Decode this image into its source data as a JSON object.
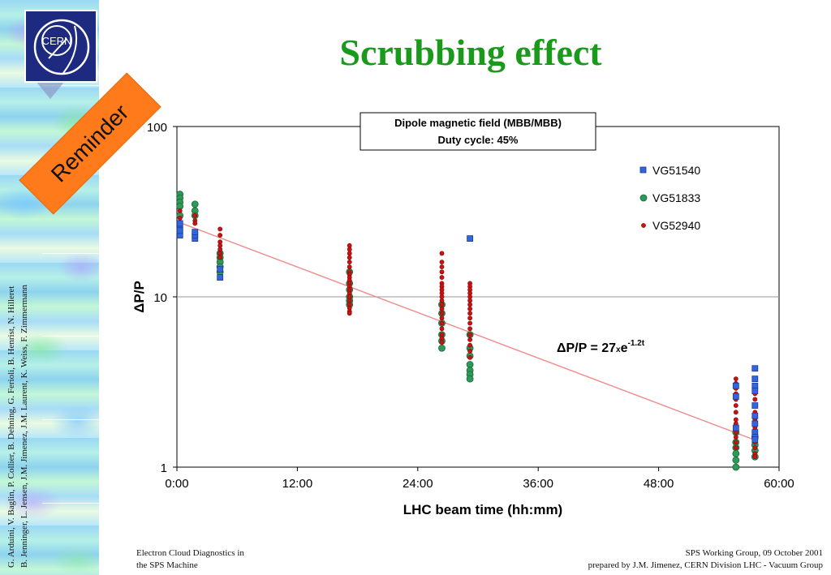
{
  "slide": {
    "title": "Scrubbing effect",
    "reminder": "Reminder",
    "logo_text": "CERN",
    "authors_line1": "G. Arduini, V. Baglin, P. Collier, B. Dehning, G. Ferioli, B. Henrist, N. Hilleret",
    "authors_line2": "B. Jenninger, L. Jensen, J.M. Jimenez, J.M. Laurent, K. Weiss, F. Zimmermann",
    "footer_left_1": "Electron Cloud Diagnostics in",
    "footer_left_2": "the SPS Machine",
    "footer_right_1": "SPS Working Group, 09 October 2001",
    "footer_right_2": "prepared by J.M. Jimenez, CERN Division LHC - Vacuum Group"
  },
  "colors": {
    "title": "#1a9a1a",
    "accent_orange": "#ff7a1a",
    "logo_bg": "#1e2a80"
  },
  "chart_data": {
    "type": "scatter",
    "y_scale": "log",
    "xlabel": "LHC beam time (hh:mm)",
    "ylabel": "ΔP/P",
    "xlim": [
      0,
      60
    ],
    "ylim": [
      1,
      100
    ],
    "x_ticks": [
      {
        "value": 0,
        "label": "0:00"
      },
      {
        "value": 12,
        "label": "12:00"
      },
      {
        "value": 24,
        "label": "24:00"
      },
      {
        "value": 36,
        "label": "36:00"
      },
      {
        "value": 48,
        "label": "48:00"
      },
      {
        "value": 60,
        "label": "60:00"
      }
    ],
    "y_ticks": [
      {
        "value": 1,
        "label": "1"
      },
      {
        "value": 10,
        "label": "10"
      },
      {
        "value": 100,
        "label": "100"
      }
    ],
    "info_box": [
      "Dipole magnetic field (MBB/MBB)",
      "Duty cycle: 45%"
    ],
    "fit": {
      "label": "ΔP/P = 27",
      "label_x": "x",
      "label_e": "e",
      "label_exp": "-1.2t",
      "points": [
        [
          0.5,
          27
        ],
        [
          57.5,
          1.45
        ]
      ]
    },
    "legend_position": "right",
    "series": [
      {
        "name": "VG51540",
        "marker": "square",
        "color": "#3366dd",
        "points": [
          [
            0.3,
            23
          ],
          [
            0.3,
            25
          ],
          [
            0.3,
            27
          ],
          [
            0.3,
            24.5
          ],
          [
            1.8,
            22
          ],
          [
            1.8,
            23
          ],
          [
            1.8,
            24
          ],
          [
            4.3,
            13
          ],
          [
            4.3,
            14.5
          ],
          [
            29.2,
            22
          ],
          [
            55.7,
            2.6
          ],
          [
            55.7,
            3.0
          ],
          [
            55.7,
            1.7
          ],
          [
            57.6,
            3.8
          ],
          [
            57.6,
            3.3
          ],
          [
            57.6,
            3.0
          ],
          [
            57.6,
            2.8
          ],
          [
            57.6,
            2.3
          ],
          [
            57.6,
            2.0
          ],
          [
            57.6,
            1.8
          ],
          [
            57.6,
            1.6
          ],
          [
            57.6,
            1.5
          ],
          [
            57.6,
            1.45
          ]
        ]
      },
      {
        "name": "VG51833",
        "marker": "circle",
        "color": "#2e9a5a",
        "points": [
          [
            0.3,
            40
          ],
          [
            0.3,
            38
          ],
          [
            0.3,
            36
          ],
          [
            0.3,
            34
          ],
          [
            0.3,
            30
          ],
          [
            1.8,
            35
          ],
          [
            1.8,
            32
          ],
          [
            1.8,
            30
          ],
          [
            4.3,
            18
          ],
          [
            4.3,
            17
          ],
          [
            4.3,
            16
          ],
          [
            4.3,
            15
          ],
          [
            4.3,
            14
          ],
          [
            17.2,
            14
          ],
          [
            17.2,
            12
          ],
          [
            17.2,
            11
          ],
          [
            17.2,
            10
          ],
          [
            17.2,
            9.5
          ],
          [
            17.2,
            9.0
          ],
          [
            26.4,
            9
          ],
          [
            26.4,
            8
          ],
          [
            26.4,
            7
          ],
          [
            26.4,
            6
          ],
          [
            26.4,
            5.5
          ],
          [
            26.4,
            5.0
          ],
          [
            29.2,
            6
          ],
          [
            29.2,
            5
          ],
          [
            29.2,
            4.5
          ],
          [
            29.2,
            4.0
          ],
          [
            29.2,
            3.7
          ],
          [
            29.2,
            3.5
          ],
          [
            29.2,
            3.3
          ],
          [
            55.7,
            1.6
          ],
          [
            55.7,
            1.4
          ],
          [
            55.7,
            1.3
          ],
          [
            55.7,
            1.2
          ],
          [
            55.7,
            1.1
          ],
          [
            55.7,
            1.0
          ],
          [
            57.6,
            1.5
          ],
          [
            57.6,
            1.35
          ],
          [
            57.6,
            1.25
          ],
          [
            57.6,
            1.15
          ]
        ]
      },
      {
        "name": "VG52940",
        "marker": "circle-small",
        "color": "#cc1111",
        "points": [
          [
            0.3,
            32
          ],
          [
            0.3,
            29
          ],
          [
            0.3,
            26
          ],
          [
            1.8,
            30
          ],
          [
            1.8,
            28
          ],
          [
            1.8,
            27
          ],
          [
            4.3,
            25
          ],
          [
            4.3,
            23
          ],
          [
            4.3,
            21
          ],
          [
            4.3,
            20
          ],
          [
            4.3,
            19
          ],
          [
            4.3,
            18
          ],
          [
            4.3,
            17
          ],
          [
            17.2,
            20
          ],
          [
            17.2,
            19
          ],
          [
            17.2,
            18
          ],
          [
            17.2,
            17
          ],
          [
            17.2,
            16
          ],
          [
            17.2,
            15
          ],
          [
            17.2,
            14
          ],
          [
            17.2,
            13.5
          ],
          [
            17.2,
            13
          ],
          [
            17.2,
            12.5
          ],
          [
            17.2,
            12
          ],
          [
            17.2,
            11.5
          ],
          [
            17.2,
            11
          ],
          [
            17.2,
            10.5
          ],
          [
            17.2,
            10
          ],
          [
            17.2,
            9.5
          ],
          [
            17.2,
            9
          ],
          [
            17.2,
            8.6
          ],
          [
            17.2,
            8.2
          ],
          [
            17.2,
            8
          ],
          [
            26.4,
            18
          ],
          [
            26.4,
            16
          ],
          [
            26.4,
            15
          ],
          [
            26.4,
            14
          ],
          [
            26.4,
            13
          ],
          [
            26.4,
            12
          ],
          [
            26.4,
            11.5
          ],
          [
            26.4,
            11
          ],
          [
            26.4,
            10.5
          ],
          [
            26.4,
            10
          ],
          [
            26.4,
            9.5
          ],
          [
            26.4,
            9
          ],
          [
            26.4,
            8.5
          ],
          [
            26.4,
            8
          ],
          [
            26.4,
            7.5
          ],
          [
            26.4,
            7
          ],
          [
            26.4,
            6.5
          ],
          [
            26.4,
            6
          ],
          [
            26.4,
            5.7
          ],
          [
            26.4,
            5.4
          ],
          [
            29.2,
            12
          ],
          [
            29.2,
            11.5
          ],
          [
            29.2,
            11
          ],
          [
            29.2,
            10.5
          ],
          [
            29.2,
            10
          ],
          [
            29.2,
            9.5
          ],
          [
            29.2,
            9
          ],
          [
            29.2,
            8.5
          ],
          [
            29.2,
            8
          ],
          [
            29.2,
            7.5
          ],
          [
            29.2,
            7
          ],
          [
            29.2,
            6.5
          ],
          [
            29.2,
            6
          ],
          [
            29.2,
            5.6
          ],
          [
            29.2,
            5.2
          ],
          [
            29.2,
            4.8
          ],
          [
            29.2,
            4.4
          ],
          [
            55.7,
            3.3
          ],
          [
            55.7,
            3.1
          ],
          [
            55.7,
            2.9
          ],
          [
            55.7,
            2.7
          ],
          [
            55.7,
            2.5
          ],
          [
            55.7,
            2.3
          ],
          [
            55.7,
            2.1
          ],
          [
            55.7,
            1.9
          ],
          [
            55.7,
            1.8
          ],
          [
            55.7,
            1.7
          ],
          [
            55.7,
            1.6
          ],
          [
            55.7,
            1.5
          ],
          [
            55.7,
            1.4
          ],
          [
            55.7,
            1.3
          ],
          [
            57.6,
            2.7
          ],
          [
            57.6,
            2.5
          ],
          [
            57.6,
            2.3
          ],
          [
            57.6,
            2.1
          ],
          [
            57.6,
            2.0
          ],
          [
            57.6,
            1.9
          ],
          [
            57.6,
            1.8
          ],
          [
            57.6,
            1.7
          ],
          [
            57.6,
            1.6
          ],
          [
            57.6,
            1.4
          ],
          [
            57.6,
            1.3
          ],
          [
            57.6,
            1.2
          ],
          [
            57.6,
            1.15
          ]
        ]
      }
    ]
  }
}
